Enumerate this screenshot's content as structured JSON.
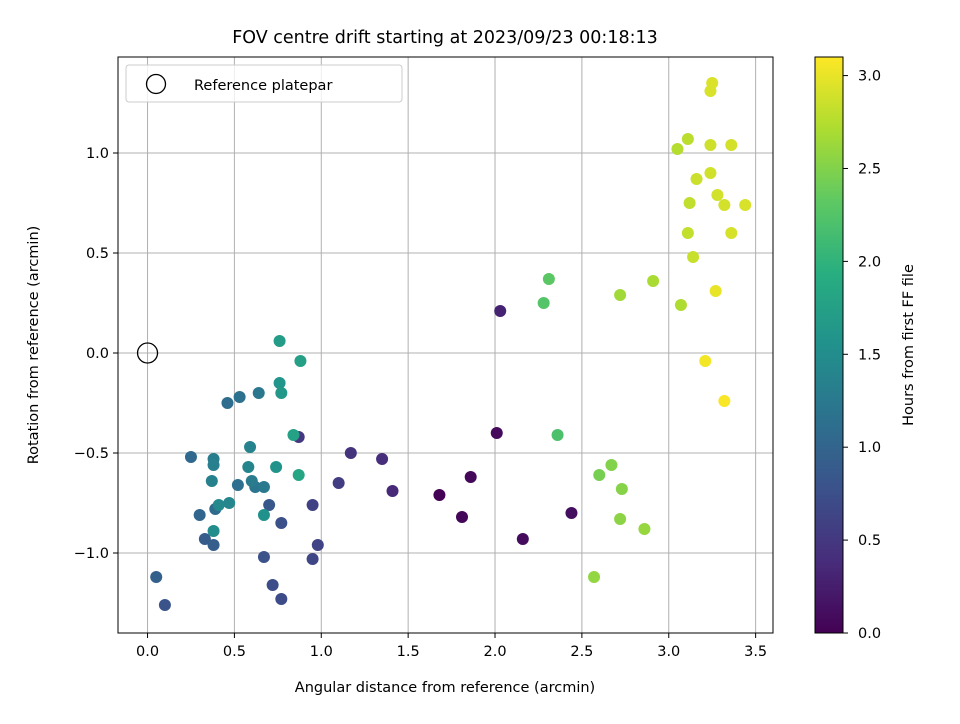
{
  "chart_data": {
    "type": "scatter",
    "title": "FOV centre drift starting at 2023/09/23 00:18:13",
    "xlabel": "Angular distance from reference (arcmin)",
    "ylabel": "Rotation from reference (arcmin)",
    "xlim": [
      -0.17,
      3.6
    ],
    "ylim": [
      -1.4,
      1.48
    ],
    "xticks": [
      0.0,
      0.5,
      1.0,
      1.5,
      2.0,
      2.5,
      3.0,
      3.5
    ],
    "xtick_labels": [
      "0.0",
      "0.5",
      "1.0",
      "1.5",
      "2.0",
      "2.5",
      "3.0",
      "3.5"
    ],
    "yticks": [
      -1.0,
      -0.5,
      0.0,
      0.5,
      1.0
    ],
    "ytick_labels": [
      "−1.0",
      "−0.5",
      "0.0",
      "0.5",
      "1.0"
    ],
    "grid": true,
    "legend": {
      "position": "top-left",
      "entries": [
        {
          "label": "Reference platepar",
          "marker": "open-circle"
        }
      ]
    },
    "reference_point": {
      "x": 0.0,
      "y": 0.0
    },
    "colorbar": {
      "label": "Hours from first FF file",
      "range": [
        0.0,
        3.1
      ],
      "colormap": "viridis",
      "ticks": [
        0.0,
        0.5,
        1.0,
        1.5,
        2.0,
        2.5,
        3.0
      ],
      "tick_labels": [
        "0.0",
        "0.5",
        "1.0",
        "1.5",
        "2.0",
        "2.5",
        "3.0"
      ]
    },
    "points": [
      {
        "x": 1.68,
        "y": -0.71,
        "c": 0.02
      },
      {
        "x": 1.81,
        "y": -0.82,
        "c": 0.04
      },
      {
        "x": 1.86,
        "y": -0.62,
        "c": 0.06
      },
      {
        "x": 2.01,
        "y": -0.4,
        "c": 0.08
      },
      {
        "x": 2.16,
        "y": -0.93,
        "c": 0.1
      },
      {
        "x": 2.44,
        "y": -0.8,
        "c": 0.12
      },
      {
        "x": 2.03,
        "y": 0.21,
        "c": 0.3
      },
      {
        "x": 1.41,
        "y": -0.69,
        "c": 0.35
      },
      {
        "x": 1.35,
        "y": -0.53,
        "c": 0.4
      },
      {
        "x": 1.17,
        "y": -0.5,
        "c": 0.45
      },
      {
        "x": 0.87,
        "y": -0.42,
        "c": 0.5
      },
      {
        "x": 1.1,
        "y": -0.65,
        "c": 0.55
      },
      {
        "x": 0.95,
        "y": -0.76,
        "c": 0.6
      },
      {
        "x": 0.98,
        "y": -0.96,
        "c": 0.62
      },
      {
        "x": 0.95,
        "y": -1.03,
        "c": 0.65
      },
      {
        "x": 0.77,
        "y": -1.23,
        "c": 0.7
      },
      {
        "x": 0.72,
        "y": -1.16,
        "c": 0.72
      },
      {
        "x": 0.77,
        "y": -0.85,
        "c": 0.75
      },
      {
        "x": 0.67,
        "y": -1.02,
        "c": 0.78
      },
      {
        "x": 0.1,
        "y": -1.26,
        "c": 0.8
      },
      {
        "x": 0.7,
        "y": -0.76,
        "c": 0.85
      },
      {
        "x": 0.33,
        "y": -0.93,
        "c": 0.9
      },
      {
        "x": 0.38,
        "y": -0.96,
        "c": 0.92
      },
      {
        "x": 0.05,
        "y": -1.12,
        "c": 0.95
      },
      {
        "x": 0.3,
        "y": -0.81,
        "c": 1.0
      },
      {
        "x": 0.25,
        "y": -0.52,
        "c": 1.05
      },
      {
        "x": 0.39,
        "y": -0.78,
        "c": 1.08
      },
      {
        "x": 0.46,
        "y": -0.25,
        "c": 1.1
      },
      {
        "x": 0.52,
        "y": -0.66,
        "c": 1.12
      },
      {
        "x": 0.53,
        "y": -0.22,
        "c": 1.15
      },
      {
        "x": 0.62,
        "y": -0.67,
        "c": 1.2
      },
      {
        "x": 0.64,
        "y": -0.2,
        "c": 1.22
      },
      {
        "x": 0.67,
        "y": -0.67,
        "c": 1.25
      },
      {
        "x": 0.6,
        "y": -0.64,
        "c": 1.28
      },
      {
        "x": 0.38,
        "y": -0.53,
        "c": 1.3
      },
      {
        "x": 0.38,
        "y": -0.56,
        "c": 1.32
      },
      {
        "x": 0.37,
        "y": -0.64,
        "c": 1.35
      },
      {
        "x": 0.59,
        "y": -0.47,
        "c": 1.38
      },
      {
        "x": 0.58,
        "y": -0.57,
        "c": 1.4
      },
      {
        "x": 0.47,
        "y": -0.75,
        "c": 1.42
      },
      {
        "x": 0.41,
        "y": -0.76,
        "c": 1.45
      },
      {
        "x": 0.38,
        "y": -0.89,
        "c": 1.5
      },
      {
        "x": 0.67,
        "y": -0.81,
        "c": 1.55
      },
      {
        "x": 0.74,
        "y": -0.57,
        "c": 1.58
      },
      {
        "x": 0.76,
        "y": -0.15,
        "c": 1.62
      },
      {
        "x": 0.77,
        "y": -0.2,
        "c": 1.65
      },
      {
        "x": 0.76,
        "y": 0.06,
        "c": 1.7
      },
      {
        "x": 0.88,
        "y": -0.04,
        "c": 1.75
      },
      {
        "x": 0.84,
        "y": -0.41,
        "c": 1.78
      },
      {
        "x": 0.87,
        "y": -0.61,
        "c": 1.82
      },
      {
        "x": 2.36,
        "y": -0.41,
        "c": 2.2
      },
      {
        "x": 2.28,
        "y": 0.25,
        "c": 2.25
      },
      {
        "x": 2.31,
        "y": 0.37,
        "c": 2.3
      },
      {
        "x": 2.6,
        "y": -0.61,
        "c": 2.45
      },
      {
        "x": 2.67,
        "y": -0.56,
        "c": 2.5
      },
      {
        "x": 2.73,
        "y": -0.68,
        "c": 2.52
      },
      {
        "x": 2.72,
        "y": -0.83,
        "c": 2.55
      },
      {
        "x": 2.57,
        "y": -1.12,
        "c": 2.58
      },
      {
        "x": 2.86,
        "y": -0.88,
        "c": 2.6
      },
      {
        "x": 2.72,
        "y": 0.29,
        "c": 2.65
      },
      {
        "x": 2.91,
        "y": 0.36,
        "c": 2.7
      },
      {
        "x": 3.07,
        "y": 0.24,
        "c": 2.72
      },
      {
        "x": 3.05,
        "y": 1.02,
        "c": 2.75
      },
      {
        "x": 3.11,
        "y": 1.07,
        "c": 2.78
      },
      {
        "x": 3.12,
        "y": 0.75,
        "c": 2.8
      },
      {
        "x": 3.11,
        "y": 0.6,
        "c": 2.82
      },
      {
        "x": 3.14,
        "y": 0.48,
        "c": 2.84
      },
      {
        "x": 3.16,
        "y": 0.87,
        "c": 2.86
      },
      {
        "x": 3.24,
        "y": 1.04,
        "c": 2.87
      },
      {
        "x": 3.24,
        "y": 0.9,
        "c": 2.88
      },
      {
        "x": 3.28,
        "y": 0.79,
        "c": 2.89
      },
      {
        "x": 3.32,
        "y": 0.74,
        "c": 2.9
      },
      {
        "x": 3.36,
        "y": 1.04,
        "c": 2.9
      },
      {
        "x": 3.36,
        "y": 0.6,
        "c": 2.91
      },
      {
        "x": 3.44,
        "y": 0.74,
        "c": 2.92
      },
      {
        "x": 3.24,
        "y": 1.31,
        "c": 2.92
      },
      {
        "x": 3.25,
        "y": 1.35,
        "c": 2.93
      },
      {
        "x": 3.27,
        "y": 0.31,
        "c": 3.0
      },
      {
        "x": 3.21,
        "y": -0.04,
        "c": 3.05
      },
      {
        "x": 3.32,
        "y": -0.24,
        "c": 3.08
      }
    ]
  }
}
